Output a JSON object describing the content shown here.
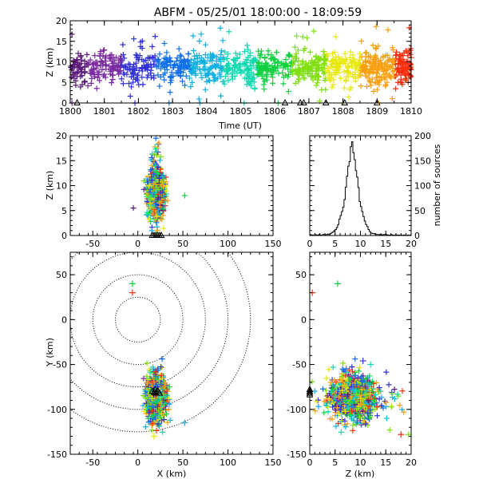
{
  "title": "ABFM - 05/25/01 18:00:00 - 18:09:59",
  "chart_data": [
    {
      "id": "timeseries",
      "type": "scatter",
      "xlabel": "Time (UT)",
      "ylabel": "Z (km)",
      "xlim": [
        1800,
        1810
      ],
      "ylim": [
        0,
        20
      ],
      "xticks": [
        "1800",
        "1801",
        "1802",
        "1803",
        "1804",
        "1805",
        "1806",
        "1807",
        "1808",
        "1809",
        "1810"
      ],
      "yticks": [
        0,
        5,
        10,
        15,
        20
      ],
      "color_encoding": "time (purple early → red late)",
      "source_count_approx": 1200,
      "altitude_profile": {
        "mean_km": 8.5,
        "spread_km": 2.0
      },
      "ground_events_time": [
        1800.05,
        1800.2,
        1801.9,
        1802.9,
        1803.8,
        1805.1,
        1806.1,
        1806.3,
        1806.75,
        1806.85,
        1807.5,
        1808.0,
        1808.05,
        1809.0,
        1809.05
      ],
      "ground_events_markers": [
        "plus",
        "triangle",
        "plus",
        "plus",
        "plus",
        "plus",
        "plus",
        "triangle",
        "triangle",
        "triangle",
        "triangle",
        "plus",
        "triangle",
        "triangle",
        "plus"
      ]
    },
    {
      "id": "x-z",
      "type": "scatter",
      "xlabel": "",
      "ylabel": "Z (km)",
      "xlim": [
        -75,
        150
      ],
      "ylim": [
        0,
        20
      ],
      "xticks": [
        -50,
        0,
        50,
        100,
        150
      ],
      "yticks": [
        0,
        5,
        10,
        15,
        20
      ],
      "cluster": {
        "x_center_km": 20,
        "x_spread_km": 4,
        "z_center_km": 8.5
      },
      "outliers": [
        [
          -5,
          5.5
        ],
        [
          20,
          19.5
        ],
        [
          52,
          8
        ],
        [
          33,
          7
        ]
      ]
    },
    {
      "id": "histogram",
      "type": "bar",
      "xlabel": "",
      "ylabel": "number of sources",
      "xlim": [
        0,
        20
      ],
      "ylim": [
        0,
        200
      ],
      "xticks": [
        0,
        5,
        10,
        15,
        20
      ],
      "yticks": [
        0,
        50,
        100,
        150,
        200
      ],
      "bin_width_km": 0.25,
      "counts": [
        2,
        1,
        1,
        0,
        2,
        1,
        1,
        2,
        1,
        0,
        2,
        2,
        1,
        2,
        3,
        2,
        4,
        6,
        7,
        10,
        12,
        16,
        22,
        33,
        40,
        48,
        57,
        72,
        97,
        119,
        139,
        148,
        178,
        188,
        166,
        152,
        130,
        117,
        96,
        68,
        58,
        48,
        38,
        29,
        22,
        18,
        12,
        8,
        5,
        4,
        4,
        3,
        2,
        2,
        2,
        1,
        2,
        1,
        2,
        2,
        2,
        1,
        1,
        1,
        2,
        1,
        0,
        1,
        1,
        1,
        1,
        0,
        1,
        0,
        1,
        1,
        0,
        1,
        0,
        1
      ]
    },
    {
      "id": "x-y",
      "type": "scatter",
      "xlabel": "X (km)",
      "ylabel": "Y (km)",
      "xlim": [
        -75,
        150
      ],
      "ylim": [
        -150,
        75
      ],
      "xticks": [
        -50,
        0,
        50,
        100,
        150
      ],
      "yticks": [
        -150,
        -100,
        -50,
        0,
        50
      ],
      "range_rings_km": [
        25,
        50,
        75,
        100,
        125
      ],
      "cluster": {
        "x_center_km": 20,
        "y_center_km": -87,
        "x_spread_km": 5,
        "y_spread_km": 14
      },
      "stations": [
        [
          16,
          -80
        ],
        [
          18,
          -81
        ],
        [
          20,
          -82
        ],
        [
          22,
          -80
        ],
        [
          24,
          -82
        ],
        [
          19,
          -78
        ]
      ],
      "outliers": [
        [
          -6,
          40
        ],
        [
          -6,
          30
        ],
        [
          52,
          -115
        ],
        [
          35,
          -75
        ],
        [
          18,
          -130
        ]
      ]
    },
    {
      "id": "z-y",
      "type": "scatter",
      "xlabel": "Z (km)",
      "ylabel": "",
      "xlim": [
        0,
        20
      ],
      "ylim": [
        -150,
        75
      ],
      "xticks": [
        0,
        5,
        10,
        15,
        20
      ],
      "yticks": [
        -150,
        -100,
        -50,
        0,
        50
      ],
      "cluster": {
        "z_center_km": 8.5,
        "y_center_km": -87
      },
      "stations_z_km": 0,
      "outliers": [
        [
          5.5,
          40
        ],
        [
          0.5,
          30
        ],
        [
          19.5,
          -128
        ],
        [
          18,
          -128
        ],
        [
          10.5,
          -46
        ],
        [
          12,
          -50
        ]
      ]
    }
  ],
  "colors": {
    "palette": [
      "#5a1a78",
      "#7a2aa0",
      "#3030d8",
      "#1070e8",
      "#10b0e0",
      "#10d8b0",
      "#10d040",
      "#80e010",
      "#e8e810",
      "#f8a010",
      "#f83010"
    ]
  }
}
